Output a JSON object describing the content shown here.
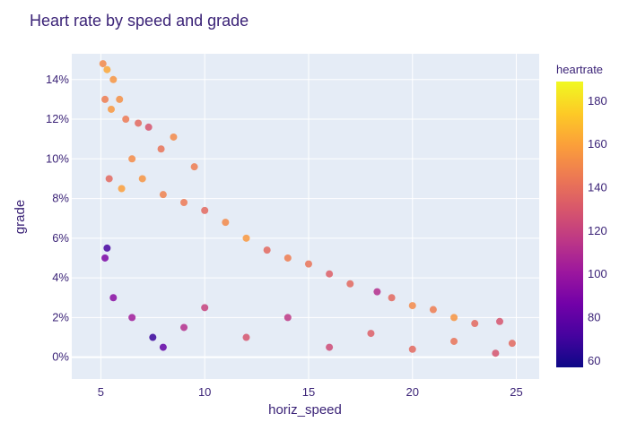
{
  "chart_data": {
    "type": "scatter",
    "title": "Heart rate by speed and grade",
    "xlabel": "horiz_speed",
    "ylabel": "grade",
    "xlim": [
      3.6,
      26.1
    ],
    "ylim": [
      -0.011,
      0.153
    ],
    "x_ticks": [
      {
        "value": 5,
        "label": "5"
      },
      {
        "value": 10,
        "label": "10"
      },
      {
        "value": 15,
        "label": "15"
      },
      {
        "value": 20,
        "label": "20"
      },
      {
        "value": 25,
        "label": "25"
      }
    ],
    "y_ticks": [
      {
        "value": 0,
        "label": "0%"
      },
      {
        "value": 0.02,
        "label": "2%"
      },
      {
        "value": 0.04,
        "label": "4%"
      },
      {
        "value": 0.06,
        "label": "6%"
      },
      {
        "value": 0.08,
        "label": "8%"
      },
      {
        "value": 0.1,
        "label": "10%"
      },
      {
        "value": 0.12,
        "label": "12%"
      },
      {
        "value": 0.14,
        "label": "14%"
      }
    ],
    "color_scale": {
      "title": "heartrate",
      "min": 57,
      "max": 189,
      "colorscale": "plasma",
      "ticks": [
        {
          "value": 60,
          "label": "60"
        },
        {
          "value": 80,
          "label": "80"
        },
        {
          "value": 100,
          "label": "100"
        },
        {
          "value": 120,
          "label": "120"
        },
        {
          "value": 140,
          "label": "140"
        },
        {
          "value": 160,
          "label": "160"
        },
        {
          "value": 180,
          "label": "180"
        }
      ]
    },
    "points": [
      {
        "x": 5.1,
        "y": 0.148,
        "c": 165
      },
      {
        "x": 5.3,
        "y": 0.145,
        "c": 178
      },
      {
        "x": 5.6,
        "y": 0.14,
        "c": 170
      },
      {
        "x": 5.2,
        "y": 0.13,
        "c": 160
      },
      {
        "x": 5.5,
        "y": 0.125,
        "c": 172
      },
      {
        "x": 5.9,
        "y": 0.13,
        "c": 168
      },
      {
        "x": 6.2,
        "y": 0.12,
        "c": 158
      },
      {
        "x": 6.8,
        "y": 0.118,
        "c": 150
      },
      {
        "x": 7.3,
        "y": 0.116,
        "c": 140
      },
      {
        "x": 8.5,
        "y": 0.111,
        "c": 165
      },
      {
        "x": 9.5,
        "y": 0.096,
        "c": 160
      },
      {
        "x": 7.9,
        "y": 0.105,
        "c": 155
      },
      {
        "x": 6.5,
        "y": 0.1,
        "c": 166
      },
      {
        "x": 5.4,
        "y": 0.09,
        "c": 150
      },
      {
        "x": 6.0,
        "y": 0.085,
        "c": 175
      },
      {
        "x": 7.0,
        "y": 0.09,
        "c": 170
      },
      {
        "x": 8.0,
        "y": 0.082,
        "c": 162
      },
      {
        "x": 9.0,
        "y": 0.078,
        "c": 158
      },
      {
        "x": 10.0,
        "y": 0.074,
        "c": 150
      },
      {
        "x": 11.0,
        "y": 0.068,
        "c": 165
      },
      {
        "x": 12.0,
        "y": 0.06,
        "c": 172
      },
      {
        "x": 13.0,
        "y": 0.054,
        "c": 150
      },
      {
        "x": 14.0,
        "y": 0.05,
        "c": 160
      },
      {
        "x": 15.0,
        "y": 0.047,
        "c": 155
      },
      {
        "x": 16.0,
        "y": 0.042,
        "c": 145
      },
      {
        "x": 17.0,
        "y": 0.037,
        "c": 150
      },
      {
        "x": 18.3,
        "y": 0.033,
        "c": 120
      },
      {
        "x": 19.0,
        "y": 0.03,
        "c": 150
      },
      {
        "x": 20.0,
        "y": 0.026,
        "c": 165
      },
      {
        "x": 21.0,
        "y": 0.024,
        "c": 160
      },
      {
        "x": 22.0,
        "y": 0.02,
        "c": 170
      },
      {
        "x": 23.0,
        "y": 0.017,
        "c": 150
      },
      {
        "x": 24.2,
        "y": 0.018,
        "c": 140
      },
      {
        "x": 24.8,
        "y": 0.007,
        "c": 150
      },
      {
        "x": 5.2,
        "y": 0.05,
        "c": 95
      },
      {
        "x": 5.3,
        "y": 0.055,
        "c": 75
      },
      {
        "x": 5.6,
        "y": 0.03,
        "c": 100
      },
      {
        "x": 6.5,
        "y": 0.02,
        "c": 110
      },
      {
        "x": 7.5,
        "y": 0.01,
        "c": 70
      },
      {
        "x": 8.0,
        "y": 0.005,
        "c": 85
      },
      {
        "x": 9.0,
        "y": 0.015,
        "c": 120
      },
      {
        "x": 10.0,
        "y": 0.025,
        "c": 130
      },
      {
        "x": 12.0,
        "y": 0.01,
        "c": 140
      },
      {
        "x": 14.0,
        "y": 0.02,
        "c": 125
      },
      {
        "x": 16.0,
        "y": 0.005,
        "c": 135
      },
      {
        "x": 18.0,
        "y": 0.012,
        "c": 145
      },
      {
        "x": 20.0,
        "y": 0.004,
        "c": 150
      },
      {
        "x": 22.0,
        "y": 0.008,
        "c": 155
      },
      {
        "x": 24.0,
        "y": 0.002,
        "c": 140
      }
    ]
  }
}
